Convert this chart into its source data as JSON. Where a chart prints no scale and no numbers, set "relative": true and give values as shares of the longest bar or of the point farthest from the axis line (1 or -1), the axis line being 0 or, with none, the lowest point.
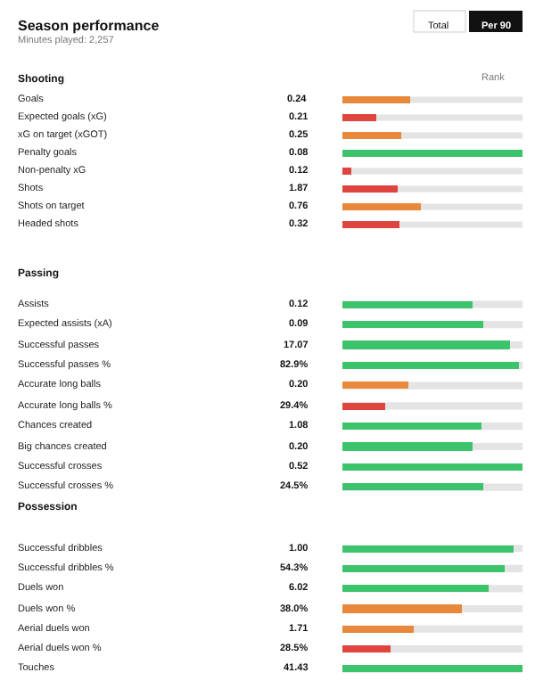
{
  "chart_data": [
    {
      "type": "bar",
      "orientation": "horizontal",
      "relative": true,
      "title": "Shooting",
      "annotations": [
        "Season performance",
        "Minutes played: 2,257",
        "Total",
        "Per 90",
        "Rank",
        "0.24",
        "0.21",
        "0.25",
        "0.08",
        "0.12",
        "1.87",
        "0.76",
        "0.32"
      ],
      "categories": [
        "Goals",
        "Expected goals (xG)",
        "xG on target (xGOT)",
        "Penalty goals",
        "Non-penalty xG",
        "Shots",
        "Shots on target",
        "Headed shots"
      ],
      "values": [
        0.38,
        0.19,
        0.33,
        1,
        0.05,
        0.31,
        0.44,
        0.32
      ],
      "colors": [
        "#e8883a",
        "#e0443e",
        "#e8883a",
        "#3cc46c",
        "#e0443e",
        "#e0443e",
        "#e8883a",
        "#e0443e"
      ]
    },
    {
      "type": "bar",
      "orientation": "horizontal",
      "relative": true,
      "title": "Passing",
      "annotations": [
        "0.12",
        "0.09",
        "17.07",
        "82.9%",
        "0.20",
        "29.4%",
        "1.08",
        "0.20",
        "0.52",
        "24.5%"
      ],
      "categories": [
        "Assists",
        "Expected assists (xA)",
        "Successful passes",
        "Successful passes %",
        "Accurate long balls",
        "Accurate long balls %",
        "Chances created",
        "Big chances created",
        "Successful crosses",
        "Successful crosses %"
      ],
      "values": [
        0.72,
        0.78,
        0.93,
        0.98,
        0.37,
        0.24,
        0.77,
        0.72,
        1,
        0.78
      ],
      "colors": [
        "#3cc46c",
        "#3cc46c",
        "#3cc46c",
        "#3cc46c",
        "#e8883a",
        "#e0443e",
        "#3cc46c",
        "#3cc46c",
        "#3cc46c",
        "#3cc46c"
      ]
    },
    {
      "type": "bar",
      "orientation": "horizontal",
      "relative": true,
      "title": "Possession",
      "annotations": [
        "1.00",
        "54.3%",
        "6.02",
        "38.0%",
        "1.71",
        "28.5%",
        "41.43"
      ],
      "categories": [
        "Successful dribbles",
        "Successful dribbles %",
        "Duels won",
        "Duels won %",
        "Aerial duels won",
        "Aerial duels won %",
        "Touches"
      ],
      "values": [
        0.95,
        0.9,
        0.81,
        0.66,
        0.4,
        0.27,
        1
      ],
      "colors": [
        "#3cc46c",
        "#3cc46c",
        "#3cc46c",
        "#e8883a",
        "#e8883a",
        "#e0443e",
        "#3cc46c"
      ]
    }
  ]
}
